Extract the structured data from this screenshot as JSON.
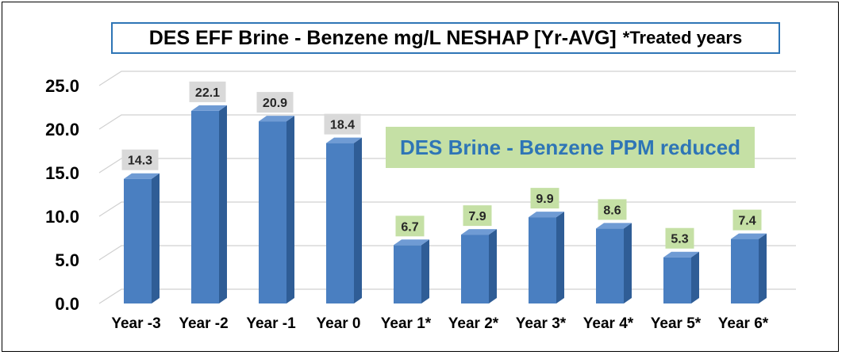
{
  "chart_data": {
    "type": "bar",
    "title": "DES EFF Brine - Benzene mg/L NESHAP [Yr-AVG]",
    "title_note": "*Treated years",
    "annotation": "DES Brine - Benzene PPM reduced",
    "categories": [
      "Year -3",
      "Year -2",
      "Year -1",
      "Year 0",
      "Year 1*",
      "Year 2*",
      "Year 3*",
      "Year 4*",
      "Year 5*",
      "Year 6*"
    ],
    "values": [
      14.3,
      22.1,
      20.9,
      18.4,
      6.7,
      7.9,
      9.9,
      8.6,
      5.3,
      7.4
    ],
    "data_labels": [
      "14.3",
      "22.1",
      "20.9",
      "18.4",
      "6.7",
      "7.9",
      "9.9",
      "8.6",
      "5.3",
      "7.4"
    ],
    "y_ticks": [
      "0.0",
      "5.0",
      "10.0",
      "15.0",
      "20.0",
      "25.0"
    ],
    "ylim": [
      0,
      25
    ],
    "grid": true,
    "legend": "none",
    "bar_color": "#4a7fc1",
    "label_bg_untreated": "#d9d9d9",
    "label_bg_treated": "#c5e0a5"
  }
}
